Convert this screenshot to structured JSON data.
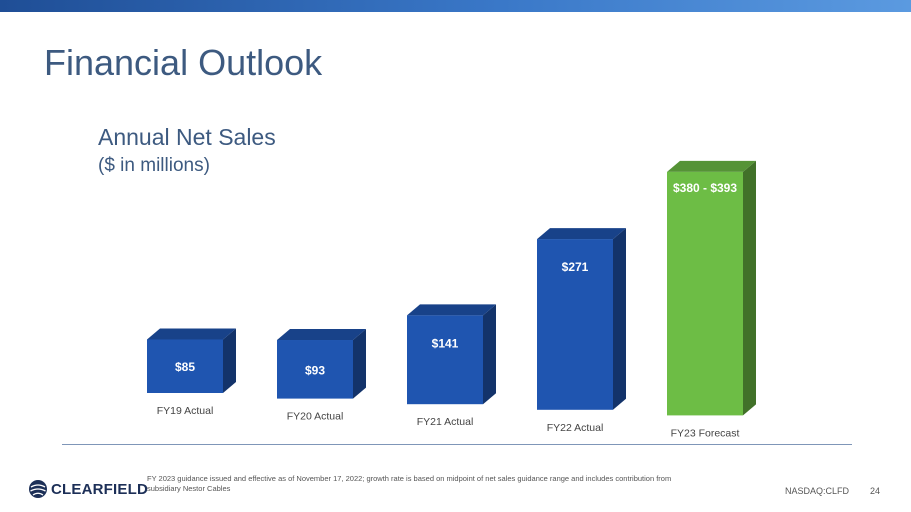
{
  "header": {
    "title": "Financial Outlook"
  },
  "chart_data": {
    "type": "bar",
    "title": "Annual Net Sales",
    "subtitle": "($ in millions)",
    "categories": [
      "FY19 Actual",
      "FY20 Actual",
      "FY21 Actual",
      "FY22 Actual",
      "FY23 Forecast"
    ],
    "values": [
      85,
      93,
      141,
      271,
      386.5
    ],
    "value_labels": [
      "$85",
      "$93",
      "$141",
      "$271",
      "$380 - $393"
    ],
    "forecast_range": [
      380,
      393
    ],
    "colors": [
      "#1f55b0",
      "#1f55b0",
      "#1f55b0",
      "#1f55b0",
      "#6dbd45"
    ],
    "ylim": [
      0,
      400
    ],
    "xlabel": "",
    "ylabel": "",
    "grid": false
  },
  "footer": {
    "company": "CLEARFIELD",
    "footnote": "FY 2023 guidance issued and effective as of November 17, 2022; growth rate is based on midpoint of net sales guidance range and includes contribution from subsidiary Nestor Cables",
    "ticker": "NASDAQ:CLFD",
    "page": "24"
  },
  "colors": {
    "accent": "#3d5a80",
    "bar_actual": "#1f55b0",
    "bar_forecast": "#6dbd45",
    "brand": "#1c2f57"
  }
}
